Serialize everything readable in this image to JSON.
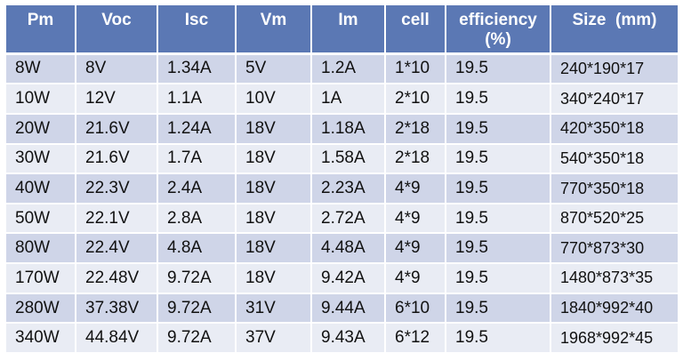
{
  "table": {
    "headers": [
      "Pm",
      "Voc",
      "Isc",
      "Vm",
      "Im",
      "cell",
      "efficiency\n(%)",
      "Size  (mm)"
    ],
    "rows": [
      [
        "8W",
        "8V",
        "1.34A",
        "5V",
        "1.2A",
        "1*10",
        "19.5",
        "240*190*17"
      ],
      [
        "10W",
        "12V",
        "1.1A",
        "10V",
        "1A",
        "2*10",
        "19.5",
        "340*240*17"
      ],
      [
        "20W",
        "21.6V",
        "1.24A",
        "18V",
        "1.18A",
        "2*18",
        "19.5",
        "420*350*18"
      ],
      [
        "30W",
        "21.6V",
        "1.7A",
        "18V",
        "1.58A",
        "2*18",
        "19.5",
        "540*350*18"
      ],
      [
        "40W",
        "22.3V",
        "2.4A",
        "18V",
        "2.23A",
        "4*9",
        "19.5",
        "770*350*18"
      ],
      [
        "50W",
        "22.1V",
        "2.8A",
        "18V",
        "2.72A",
        "4*9",
        "19.5",
        "870*520*25"
      ],
      [
        "80W",
        "22.4V",
        "4.8A",
        "18V",
        "4.48A",
        "4*9",
        "19.5",
        "770*873*30"
      ],
      [
        "170W",
        "22.48V",
        "9.72A",
        "18V",
        "9.42A",
        "4*9",
        "19.5",
        "1480*873*35"
      ],
      [
        "280W",
        "37.38V",
        "9.72A",
        "31V",
        "9.44A",
        "6*10",
        "19.5",
        "1840*992*40"
      ],
      [
        "340W",
        "44.84V",
        "9.72A",
        "37V",
        "9.43A",
        "6*12",
        "19.5",
        "1968*992*45"
      ]
    ]
  },
  "colors": {
    "header_background": "#5b78b4",
    "header_text": "#ffffff",
    "row_band_dark": "#cfd5e8",
    "row_band_light": "#e9ecf4",
    "cell_text": "#111111"
  }
}
